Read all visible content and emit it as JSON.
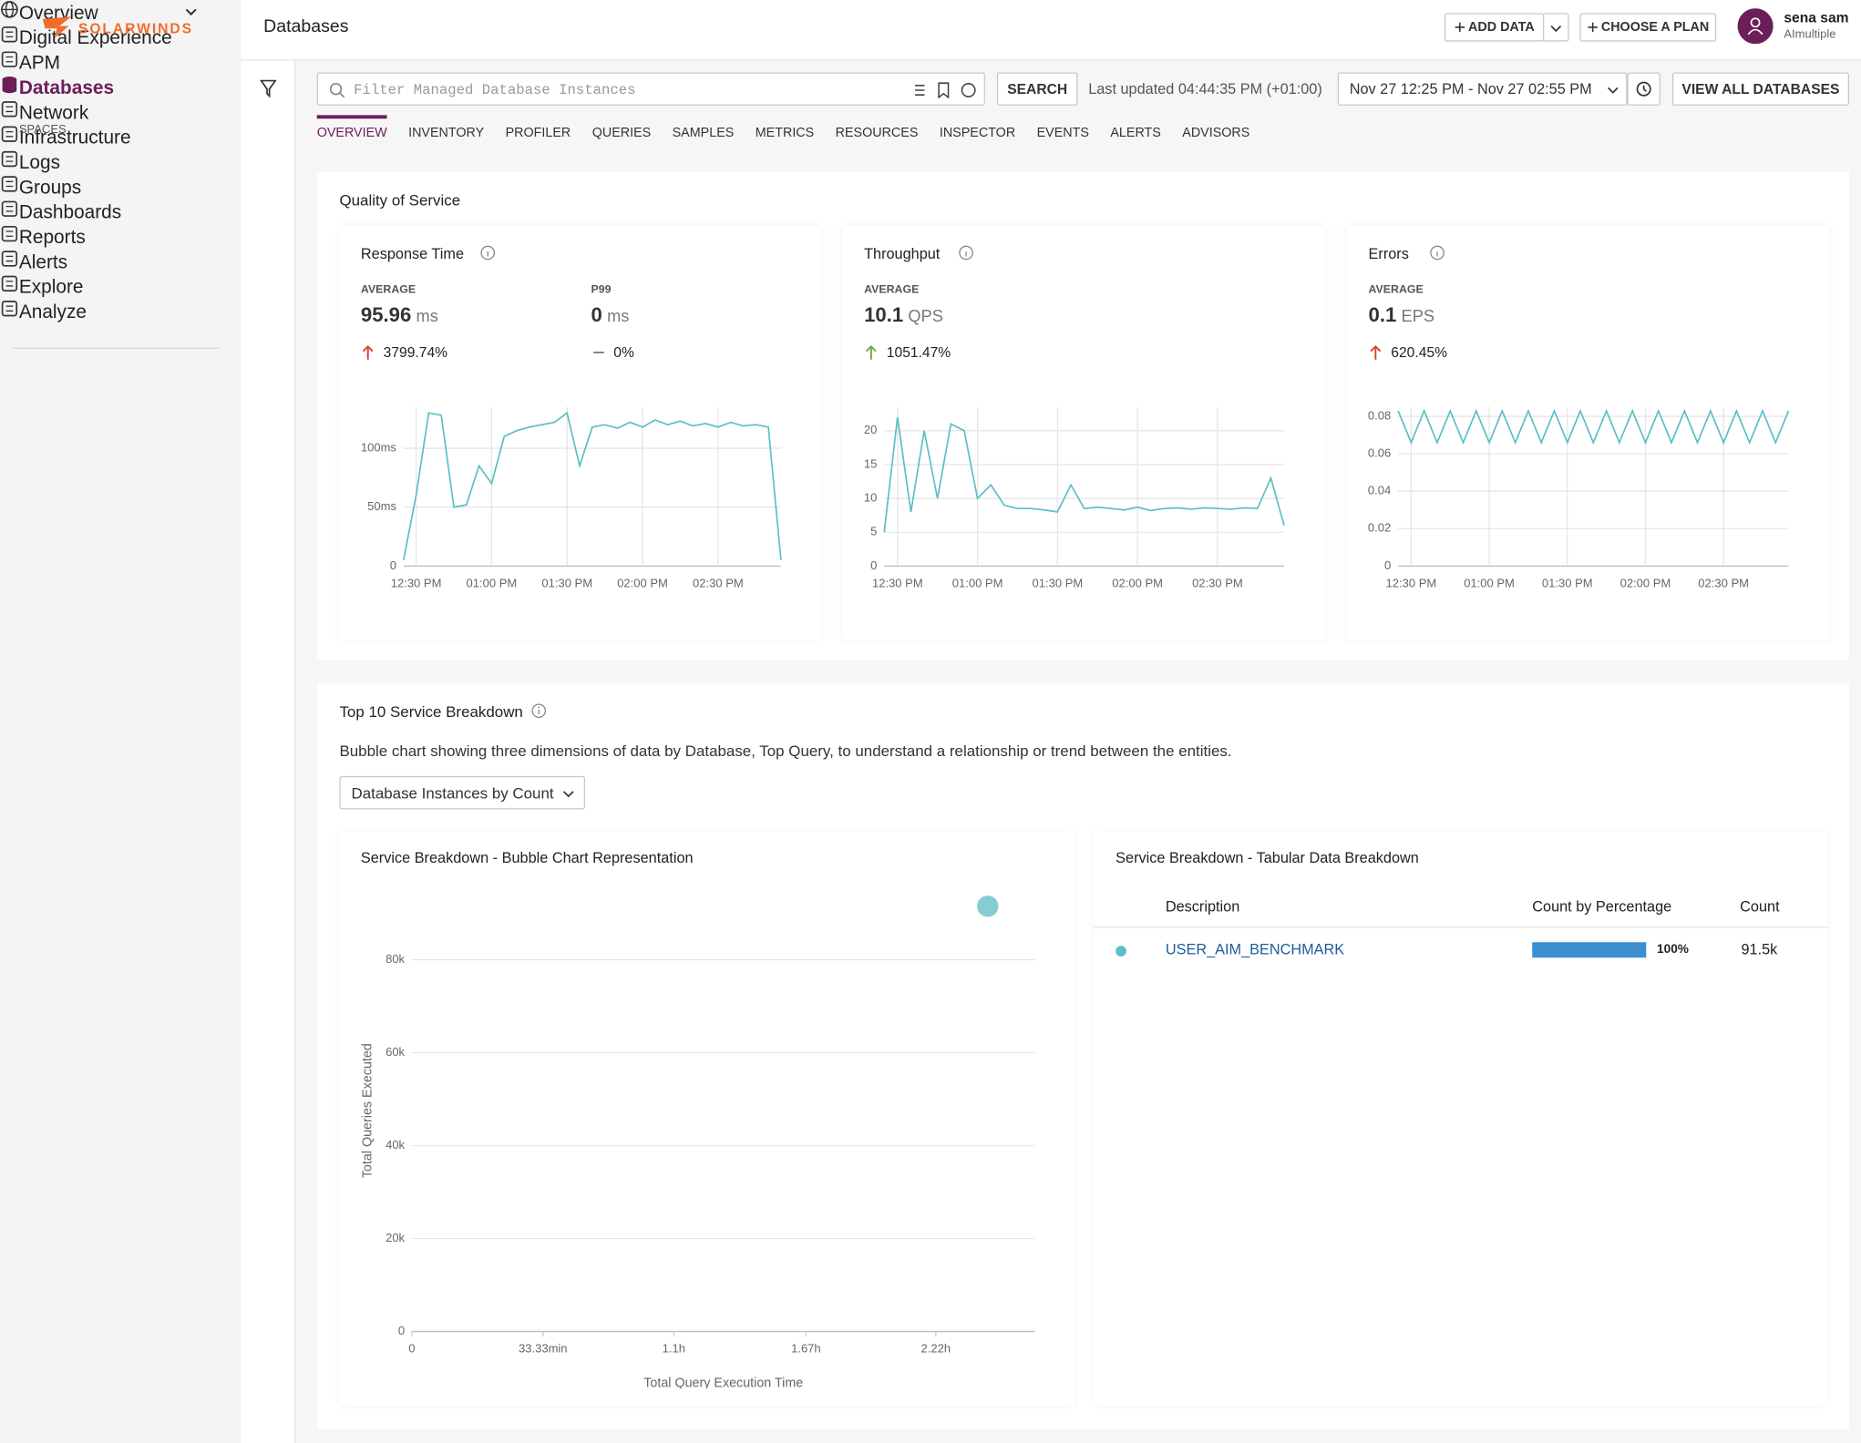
{
  "sidebar": {
    "logo": "SOLARWINDS",
    "overview": "Overview",
    "spaces_label": "SPACES",
    "spaces": [
      {
        "label": "Digital Experience",
        "expandable": true
      },
      {
        "label": "APM"
      },
      {
        "label": "Databases",
        "active": true
      },
      {
        "label": "Network",
        "expandable": true
      },
      {
        "label": "Infrastructure",
        "expandable": true
      },
      {
        "label": "Logs"
      }
    ],
    "tools": [
      {
        "label": "Groups"
      },
      {
        "label": "Dashboards"
      },
      {
        "label": "Reports"
      },
      {
        "label": "Alerts",
        "expandable": true
      },
      {
        "label": "Explore"
      },
      {
        "label": "Analyze",
        "expandable": true
      }
    ]
  },
  "header": {
    "title": "Databases",
    "add_data": "ADD DATA",
    "choose_plan": "CHOOSE A PLAN",
    "user_name": "sena sam",
    "user_org": "AImultiple"
  },
  "toolbar": {
    "filter_placeholder": "Filter Managed Database Instances",
    "search": "SEARCH",
    "last_updated": "Last updated 04:44:35 PM (+01:00)",
    "time_range": "Nov 27 12:25 PM - Nov 27 02:55 PM",
    "view_all": "VIEW ALL DATABASES"
  },
  "tabs": {
    "items": [
      "OVERVIEW",
      "INVENTORY",
      "PROFILER",
      "QUERIES",
      "SAMPLES",
      "METRICS",
      "RESOURCES",
      "INSPECTOR",
      "EVENTS",
      "ALERTS",
      "ADVISORS"
    ],
    "active": 0
  },
  "qos": {
    "title": "Quality of Service",
    "cards": [
      {
        "title": "Response Time",
        "metrics": [
          {
            "label": "AVERAGE",
            "value": 95.96,
            "unit": "ms",
            "change": "3799.74%",
            "trend": "up-bad"
          },
          {
            "label": "P99",
            "value": 0,
            "unit": "ms",
            "change": "0%",
            "trend": "flat"
          }
        ],
        "chart": {
          "type": "line",
          "color": "#5bbfc4",
          "grid": true,
          "xgrid": true,
          "x": [
            745,
            750,
            755,
            760,
            765,
            770,
            775,
            780,
            785,
            790,
            795,
            800,
            805,
            810,
            815,
            820,
            825,
            830,
            835,
            840,
            845,
            850,
            855,
            860,
            865,
            870,
            875,
            880,
            885,
            890,
            895
          ],
          "values": [
            5,
            60,
            130,
            128,
            50,
            52,
            85,
            70,
            110,
            115,
            118,
            120,
            122,
            130,
            85,
            118,
            120,
            117,
            122,
            118,
            124,
            120,
            123,
            119,
            121,
            118,
            122,
            119,
            120,
            118,
            5
          ],
          "xlim": [
            745,
            895
          ],
          "xticks": [
            {
              "value": 750,
              "label": "12:30 PM"
            },
            {
              "value": 780,
              "label": "01:00 PM"
            },
            {
              "value": 810,
              "label": "01:30 PM"
            },
            {
              "value": 840,
              "label": "02:00 PM"
            },
            {
              "value": 870,
              "label": "02:30 PM"
            }
          ],
          "ylim": [
            0,
            135
          ],
          "yticks": [
            0,
            {
              "value": 50,
              "label": "50ms"
            },
            {
              "value": 100,
              "label": "100ms"
            }
          ]
        }
      },
      {
        "title": "Throughput",
        "metrics": [
          {
            "label": "AVERAGE",
            "value": 10.1,
            "unit": "QPS",
            "change": "1051.47%",
            "trend": "up-good"
          }
        ],
        "chart": {
          "type": "line",
          "color": "#5bbfc4",
          "grid": true,
          "xgrid": true,
          "x": [
            745,
            750,
            755,
            760,
            765,
            770,
            775,
            780,
            785,
            790,
            795,
            800,
            805,
            810,
            815,
            820,
            825,
            830,
            835,
            840,
            845,
            850,
            855,
            860,
            865,
            870,
            875,
            880,
            885,
            890,
            895
          ],
          "values": [
            5,
            22,
            8,
            20,
            10,
            21,
            20,
            10,
            12,
            9,
            8.5,
            8.5,
            8.3,
            8,
            12,
            8.5,
            8.7,
            8.5,
            8.3,
            8.7,
            8.2,
            8.5,
            8.6,
            8.4,
            8.6,
            8.5,
            8.4,
            8.6,
            8.5,
            13,
            6
          ],
          "xlim": [
            745,
            895
          ],
          "xticks": [
            {
              "value": 750,
              "label": "12:30 PM"
            },
            {
              "value": 780,
              "label": "01:00 PM"
            },
            {
              "value": 810,
              "label": "01:30 PM"
            },
            {
              "value": 840,
              "label": "02:00 PM"
            },
            {
              "value": 870,
              "label": "02:30 PM"
            }
          ],
          "ylim": [
            0,
            23.5
          ],
          "yticks": [
            0,
            5,
            10,
            15,
            20
          ]
        }
      },
      {
        "title": "Errors",
        "metrics": [
          {
            "label": "AVERAGE",
            "value": 0.1,
            "unit": "EPS",
            "change": "620.45%",
            "trend": "up-bad"
          }
        ],
        "chart": {
          "type": "line",
          "color": "#5bbfc4",
          "grid": true,
          "xgrid": true,
          "x": [
            745,
            750,
            755,
            760,
            765,
            770,
            775,
            780,
            785,
            790,
            795,
            800,
            805,
            810,
            815,
            820,
            825,
            830,
            835,
            840,
            845,
            850,
            855,
            860,
            865,
            870,
            875,
            880,
            885,
            890,
            895
          ],
          "values": [
            0.083,
            0.066,
            0.083,
            0.066,
            0.083,
            0.066,
            0.083,
            0.066,
            0.083,
            0.066,
            0.083,
            0.066,
            0.083,
            0.066,
            0.083,
            0.066,
            0.083,
            0.066,
            0.083,
            0.066,
            0.083,
            0.066,
            0.083,
            0.066,
            0.083,
            0.066,
            0.083,
            0.066,
            0.083,
            0.066,
            0.083
          ],
          "xlim": [
            745,
            895
          ],
          "xticks": [
            {
              "value": 750,
              "label": "12:30 PM"
            },
            {
              "value": 780,
              "label": "01:00 PM"
            },
            {
              "value": 810,
              "label": "01:30 PM"
            },
            {
              "value": 840,
              "label": "02:00 PM"
            },
            {
              "value": 870,
              "label": "02:30 PM"
            }
          ],
          "ylim": [
            0,
            0.085
          ],
          "yticks": [
            0,
            0.02,
            0.04,
            0.06,
            0.08
          ]
        }
      }
    ]
  },
  "breakdown": {
    "title": "Top 10 Service Breakdown",
    "description": "Bubble chart showing three dimensions of data by Database, Top Query, to understand a relationship or trend between the entities.",
    "dropdown": "Database Instances by Count",
    "bubble": {
      "type": "scatter",
      "title": "Service Breakdown - Bubble Chart Representation",
      "xlabel": "Total Query Execution Time",
      "ylabel": "Total Queries Executed",
      "color": "#86cdd1",
      "x": [
        2.44
      ],
      "values": [
        91500
      ],
      "xlim": [
        0,
        2.64
      ],
      "xticks": [
        0,
        {
          "value": 0.5556,
          "label": "33.33min"
        },
        {
          "value": 1.11,
          "label": "1.1h"
        },
        {
          "value": 1.67,
          "label": "1.67h"
        },
        {
          "value": 2.22,
          "label": "2.22h"
        }
      ],
      "ylim": [
        0,
        95000
      ],
      "yticks": [
        0,
        {
          "value": 20000,
          "label": "20k"
        },
        {
          "value": 40000,
          "label": "40k"
        },
        {
          "value": 60000,
          "label": "60k"
        },
        {
          "value": 80000,
          "label": "80k"
        }
      ],
      "grid": true
    },
    "table": {
      "title": "Service Breakdown - Tabular Data Breakdown",
      "columns": [
        "Description",
        "Count by Percentage",
        "Count"
      ],
      "rows": [
        {
          "description": "USER_AIM_BENCHMARK",
          "color": "#5bbfc4",
          "percent": 100,
          "percent_label": "100%",
          "count": "91.5k"
        }
      ]
    }
  }
}
